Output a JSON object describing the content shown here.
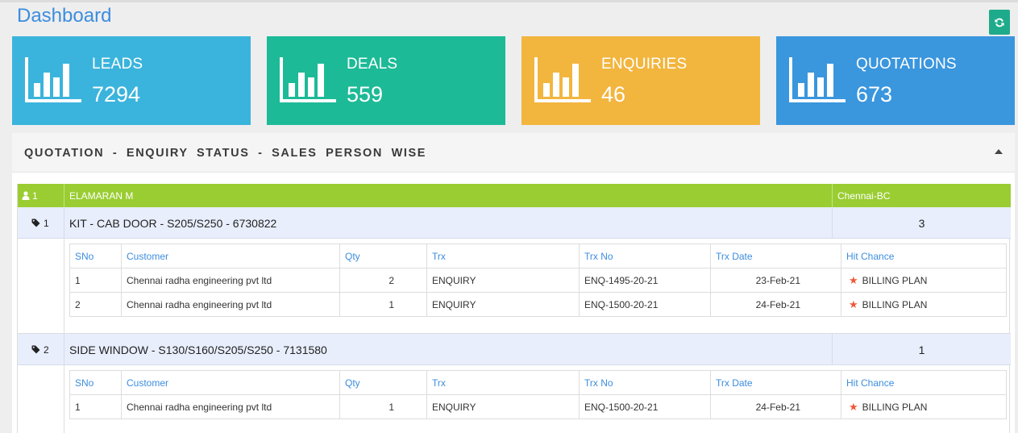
{
  "header": {
    "title": "Dashboard"
  },
  "cards": [
    {
      "label": "LEADS",
      "value": "7294",
      "color": "#3ab4dc",
      "icon": "bar-chart-icon"
    },
    {
      "label": "DEALS",
      "value": "559",
      "color": "#1dba97",
      "icon": "bar-chart-icon"
    },
    {
      "label": "ENQUIRIES",
      "value": "46",
      "color": "#f2b53e",
      "icon": "bar-chart-icon"
    },
    {
      "label": "QUOTATIONS",
      "value": "673",
      "color": "#3a96dd",
      "icon": "bar-chart-icon"
    }
  ],
  "panel": {
    "title": "QUOTATION - ENQUIRY STATUS - SALES PERSON WISE"
  },
  "sales_person": {
    "index": "1",
    "name": "ELAMARAN M",
    "branch": "Chennai-BC"
  },
  "columns": [
    "SNo",
    "Customer",
    "Qty",
    "Trx",
    "Trx No",
    "Trx Date",
    "Hit Chance"
  ],
  "products": [
    {
      "index": "1",
      "name": "KIT - CAB DOOR - S205/S250 - 6730822",
      "total": "3",
      "rows": [
        {
          "sno": "1",
          "customer": "Chennai radha engineering pvt ltd",
          "qty": "2",
          "trx": "ENQUIRY",
          "trx_no": "ENQ-1495-20-21",
          "trx_date": "23-Feb-21",
          "hit_chance": "BILLING PLAN"
        },
        {
          "sno": "2",
          "customer": "Chennai radha engineering pvt ltd",
          "qty": "1",
          "trx": "ENQUIRY",
          "trx_no": "ENQ-1500-20-21",
          "trx_date": "24-Feb-21",
          "hit_chance": "BILLING PLAN"
        }
      ]
    },
    {
      "index": "2",
      "name": "SIDE WINDOW - S130/S160/S205/S250 - 7131580",
      "total": "1",
      "rows": [
        {
          "sno": "1",
          "customer": "Chennai radha engineering pvt ltd",
          "qty": "1",
          "trx": "ENQUIRY",
          "trx_no": "ENQ-1500-20-21",
          "trx_date": "24-Feb-21",
          "hit_chance": "BILLING PLAN"
        }
      ]
    }
  ]
}
